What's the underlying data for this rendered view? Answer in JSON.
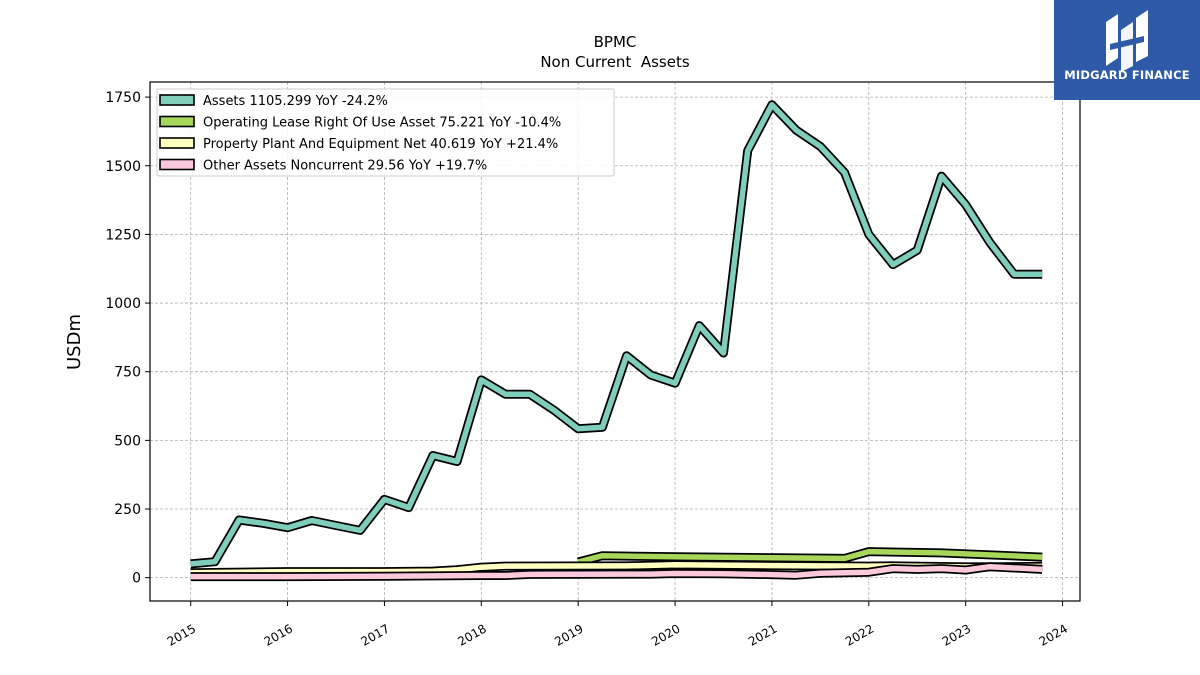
{
  "chart_data": {
    "type": "line",
    "title": "BPMC",
    "subtitle": "Non Current  Assets",
    "xlabel": "",
    "ylabel": "USDm",
    "xlim": [
      2014.58,
      2024.18
    ],
    "ylim": [
      -85,
      1805
    ],
    "x_ticks": [
      "2015",
      "2016",
      "2017",
      "2018",
      "2019",
      "2020",
      "2021",
      "2022",
      "2023",
      "2024"
    ],
    "y_ticks": [
      "0",
      "250",
      "500",
      "750",
      "1000",
      "1250",
      "1500",
      "1750"
    ],
    "grid": true,
    "legend_position": "top-left",
    "series": [
      {
        "name": "Assets  1105.299 YoY -24.2%",
        "color": "#7fcdbb",
        "points": [
          [
            2015.0,
            50
          ],
          [
            2015.25,
            58
          ],
          [
            2015.5,
            210
          ],
          [
            2015.75,
            198
          ],
          [
            2016.0,
            182
          ],
          [
            2016.25,
            208
          ],
          [
            2016.5,
            190
          ],
          [
            2016.75,
            172
          ],
          [
            2017.0,
            285
          ],
          [
            2017.25,
            255
          ],
          [
            2017.5,
            445
          ],
          [
            2017.75,
            423
          ],
          [
            2018.0,
            720
          ],
          [
            2018.25,
            668
          ],
          [
            2018.5,
            668
          ],
          [
            2018.75,
            610
          ],
          [
            2019.0,
            542
          ],
          [
            2019.25,
            548
          ],
          [
            2019.5,
            808
          ],
          [
            2019.75,
            738
          ],
          [
            2020.0,
            708
          ],
          [
            2020.25,
            918
          ],
          [
            2020.5,
            818
          ],
          [
            2020.75,
            1555
          ],
          [
            2021.0,
            1722
          ],
          [
            2021.25,
            1630
          ],
          [
            2021.5,
            1570
          ],
          [
            2021.75,
            1475
          ],
          [
            2022.0,
            1250
          ],
          [
            2022.25,
            1140
          ],
          [
            2022.5,
            1192
          ],
          [
            2022.75,
            1462
          ],
          [
            2023.0,
            1358
          ],
          [
            2023.25,
            1220
          ],
          [
            2023.5,
            1105
          ],
          [
            2023.79,
            1105
          ]
        ]
      },
      {
        "name": "Operating Lease Right Of Use Asset  75.221 YoY -10.4%",
        "color": "#a6d75b",
        "points": [
          [
            2019.0,
            57
          ],
          [
            2019.25,
            80
          ],
          [
            2020.0,
            76
          ],
          [
            2021.75,
            70
          ],
          [
            2022.0,
            95
          ],
          [
            2022.75,
            90
          ],
          [
            2023.79,
            75
          ]
        ]
      },
      {
        "name": "Property Plant And Equipment Net  40.619 YoY +21.4%",
        "color": "#ffffbf",
        "points": [
          [
            2015.0,
            18
          ],
          [
            2016.0,
            22
          ],
          [
            2017.0,
            22
          ],
          [
            2017.5,
            24
          ],
          [
            2017.75,
            29
          ],
          [
            2018.0,
            38
          ],
          [
            2018.25,
            42
          ],
          [
            2019.5,
            43
          ],
          [
            2020.0,
            47
          ],
          [
            2021.0,
            44
          ],
          [
            2022.0,
            42
          ],
          [
            2022.25,
            43
          ],
          [
            2023.0,
            39
          ],
          [
            2023.79,
            41
          ]
        ]
      },
      {
        "name": "Other Assets Noncurrent  29.56 YoY +19.7%",
        "color": "#fbc8dc",
        "points": [
          [
            2015.0,
            4
          ],
          [
            2016.0,
            4
          ],
          [
            2017.0,
            5
          ],
          [
            2018.0,
            8
          ],
          [
            2018.25,
            8
          ],
          [
            2018.5,
            12
          ],
          [
            2019.5,
            13
          ],
          [
            2019.75,
            13
          ],
          [
            2020.0,
            15
          ],
          [
            2020.5,
            14
          ],
          [
            2021.0,
            11
          ],
          [
            2021.25,
            9
          ],
          [
            2021.5,
            16
          ],
          [
            2022.0,
            20
          ],
          [
            2022.25,
            33
          ],
          [
            2022.5,
            30
          ],
          [
            2022.75,
            33
          ],
          [
            2023.0,
            28
          ],
          [
            2023.25,
            40
          ],
          [
            2023.79,
            30
          ]
        ]
      }
    ]
  },
  "logo": {
    "text": "MIDGARD FINANCE",
    "bg_color": "#2e5aa8"
  }
}
